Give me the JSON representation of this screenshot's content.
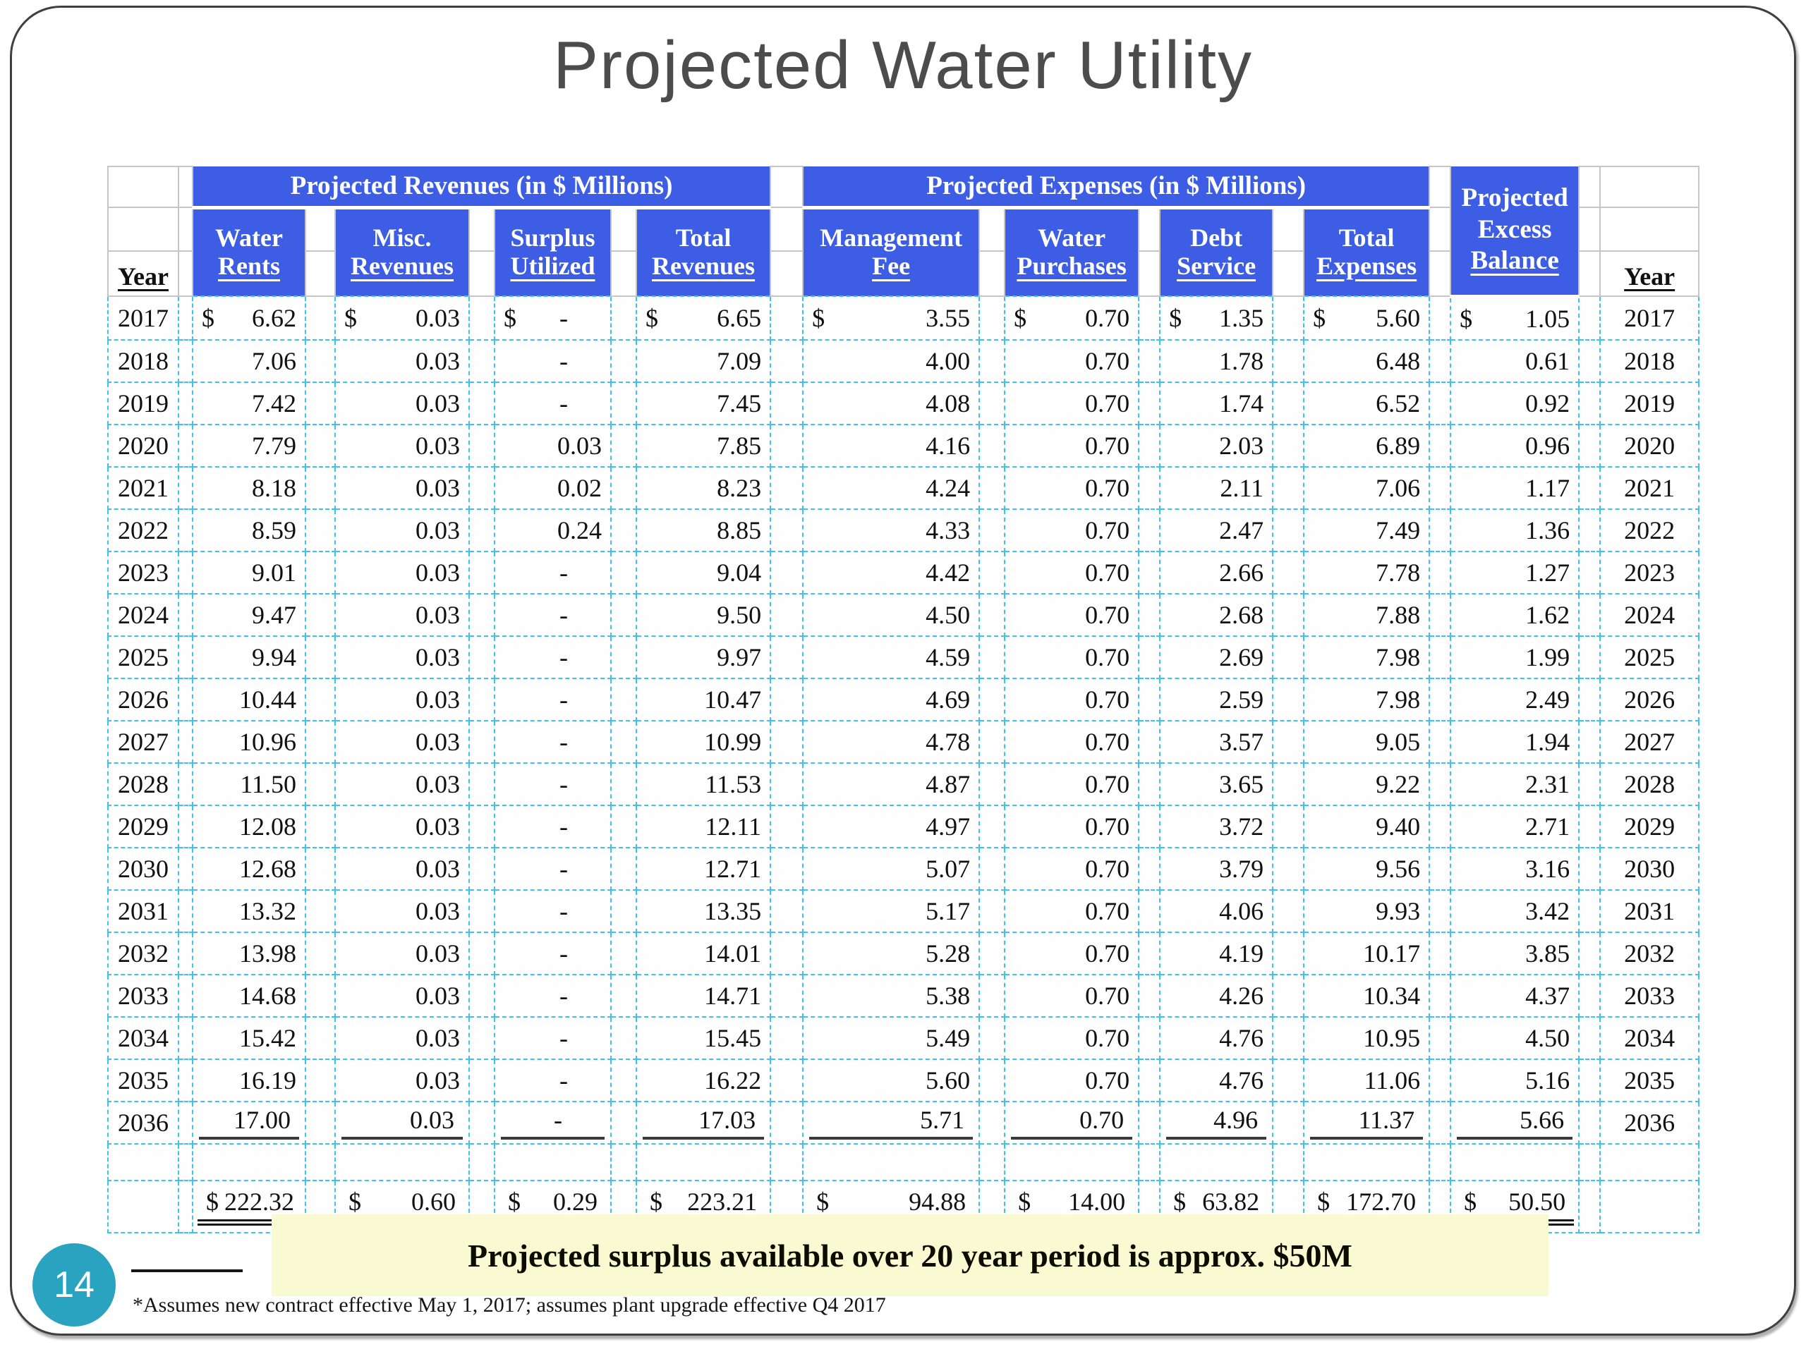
{
  "slide": {
    "title": "Projected Water Utility",
    "page_number": "14",
    "banner": "Projected surplus available over 20 year period is approx. $50M",
    "footnote": "*Assumes new contract effective May 1, 2017; assumes plant upgrade effective Q4 2017"
  },
  "colors": {
    "header_blue": "#3c5de4",
    "body_dashed_border": "#3fc3ee",
    "banner_yellow": "#fafad2",
    "badge_teal": "#2aa3c0",
    "title_gray": "#4c4c4c"
  },
  "table": {
    "group_headers": {
      "revenues": "Projected Revenues (in $ Millions)",
      "expenses": "Projected Expenses (in $ Millions)"
    },
    "excess_header": [
      "Projected",
      "Excess",
      "Balance"
    ],
    "year_header_left": "Year",
    "year_header_right": "Year",
    "sub_headers": [
      [
        "Water",
        "Rents"
      ],
      [
        "Misc.",
        "Revenues"
      ],
      [
        "Surplus",
        "Utilized"
      ],
      [
        "Total",
        "Revenues"
      ],
      [
        "Management",
        "Fee"
      ],
      [
        "Water",
        "Purchases"
      ],
      [
        "Debt",
        "Service"
      ],
      [
        "Total",
        "Expenses"
      ]
    ],
    "currency_symbol": "$",
    "rows": [
      [
        "2017",
        "6.62",
        "0.03",
        "-",
        "6.65",
        "3.55",
        "0.70",
        "1.35",
        "5.60",
        "1.05"
      ],
      [
        "2018",
        "7.06",
        "0.03",
        "-",
        "7.09",
        "4.00",
        "0.70",
        "1.78",
        "6.48",
        "0.61"
      ],
      [
        "2019",
        "7.42",
        "0.03",
        "-",
        "7.45",
        "4.08",
        "0.70",
        "1.74",
        "6.52",
        "0.92"
      ],
      [
        "2020",
        "7.79",
        "0.03",
        "0.03",
        "7.85",
        "4.16",
        "0.70",
        "2.03",
        "6.89",
        "0.96"
      ],
      [
        "2021",
        "8.18",
        "0.03",
        "0.02",
        "8.23",
        "4.24",
        "0.70",
        "2.11",
        "7.06",
        "1.17"
      ],
      [
        "2022",
        "8.59",
        "0.03",
        "0.24",
        "8.85",
        "4.33",
        "0.70",
        "2.47",
        "7.49",
        "1.36"
      ],
      [
        "2023",
        "9.01",
        "0.03",
        "-",
        "9.04",
        "4.42",
        "0.70",
        "2.66",
        "7.78",
        "1.27"
      ],
      [
        "2024",
        "9.47",
        "0.03",
        "-",
        "9.50",
        "4.50",
        "0.70",
        "2.68",
        "7.88",
        "1.62"
      ],
      [
        "2025",
        "9.94",
        "0.03",
        "-",
        "9.97",
        "4.59",
        "0.70",
        "2.69",
        "7.98",
        "1.99"
      ],
      [
        "2026",
        "10.44",
        "0.03",
        "-",
        "10.47",
        "4.69",
        "0.70",
        "2.59",
        "7.98",
        "2.49"
      ],
      [
        "2027",
        "10.96",
        "0.03",
        "-",
        "10.99",
        "4.78",
        "0.70",
        "3.57",
        "9.05",
        "1.94"
      ],
      [
        "2028",
        "11.50",
        "0.03",
        "-",
        "11.53",
        "4.87",
        "0.70",
        "3.65",
        "9.22",
        "2.31"
      ],
      [
        "2029",
        "12.08",
        "0.03",
        "-",
        "12.11",
        "4.97",
        "0.70",
        "3.72",
        "9.40",
        "2.71"
      ],
      [
        "2030",
        "12.68",
        "0.03",
        "-",
        "12.71",
        "5.07",
        "0.70",
        "3.79",
        "9.56",
        "3.16"
      ],
      [
        "2031",
        "13.32",
        "0.03",
        "-",
        "13.35",
        "5.17",
        "0.70",
        "4.06",
        "9.93",
        "3.42"
      ],
      [
        "2032",
        "13.98",
        "0.03",
        "-",
        "14.01",
        "5.28",
        "0.70",
        "4.19",
        "10.17",
        "3.85"
      ],
      [
        "2033",
        "14.68",
        "0.03",
        "-",
        "14.71",
        "5.38",
        "0.70",
        "4.26",
        "10.34",
        "4.37"
      ],
      [
        "2034",
        "15.42",
        "0.03",
        "-",
        "15.45",
        "5.49",
        "0.70",
        "4.76",
        "10.95",
        "4.50"
      ],
      [
        "2035",
        "16.19",
        "0.03",
        "-",
        "16.22",
        "5.60",
        "0.70",
        "4.76",
        "11.06",
        "5.16"
      ],
      [
        "2036",
        "17.00",
        "0.03",
        "-",
        "17.03",
        "5.71",
        "0.70",
        "4.96",
        "11.37",
        "5.66"
      ]
    ],
    "totals": [
      "222.32",
      "0.60",
      "0.29",
      "223.21",
      "94.88",
      "14.00",
      "63.82",
      "172.70",
      "50.50"
    ]
  }
}
